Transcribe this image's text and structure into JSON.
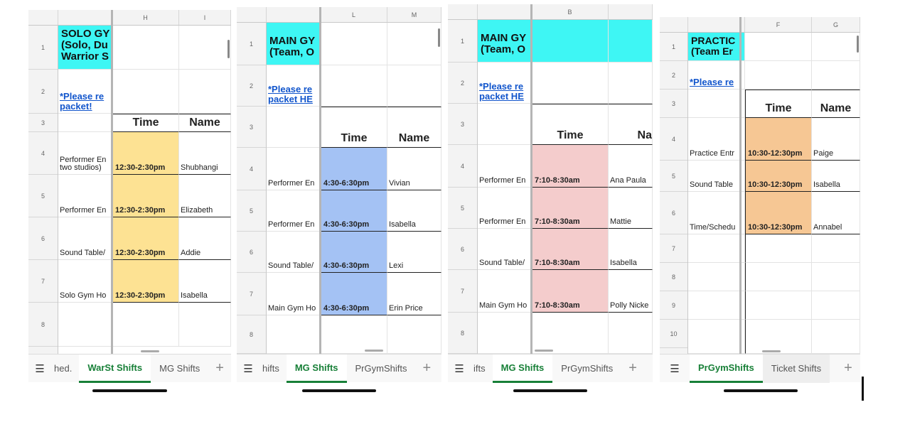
{
  "colors": {
    "title_fill": "#3ef6f4",
    "link": "#1155cc",
    "active_tab": "#188038",
    "warst_fill": "#fde293",
    "mg_pm_fill": "#a4c2f4",
    "mg_am_fill": "#f4cccc",
    "pr_fill": "#f6c794"
  },
  "panel1": {
    "col_h": "H",
    "col_i": "I",
    "rows": [
      "1",
      "2",
      "3",
      "4",
      "5",
      "6",
      "7",
      "8"
    ],
    "title": "SOLO GY\n(Solo, Du\nWarrior S",
    "link": "*Please re\npacket!",
    "hdr_time": "Time",
    "hdr_name": "Name",
    "entries": [
      {
        "role": "Performer En\ntwo studios)",
        "time": "12:30-2:30pm",
        "name": "Shubhangi"
      },
      {
        "role": "Performer En",
        "time": "12:30-2:30pm",
        "name": "Elizabeth"
      },
      {
        "role": "Sound Table/",
        "time": "12:30-2:30pm",
        "name": "Addie"
      },
      {
        "role": "Solo Gym Ho",
        "time": "12:30-2:30pm",
        "name": "Isabella"
      }
    ],
    "tabs": {
      "t1": "hed.",
      "t2": "WarSt Shifts",
      "t3": "MG Shifts",
      "plus": "+"
    }
  },
  "panel2": {
    "col_l": "L",
    "col_m": "M",
    "rows": [
      "1",
      "2",
      "3",
      "4",
      "5",
      "6",
      "7",
      "8"
    ],
    "title": "MAIN GY\n(Team, O",
    "link": "*Please re\npacket HE",
    "hdr_time": "Time",
    "hdr_name": "Name",
    "entries": [
      {
        "role": "Performer En",
        "time": "4:30-6:30pm",
        "name": "Vivian"
      },
      {
        "role": "Performer En",
        "time": "4:30-6:30pm",
        "name": "Isabella"
      },
      {
        "role": "Sound Table/",
        "time": "4:30-6:30pm",
        "name": "Lexi"
      },
      {
        "role": "Main Gym Ho",
        "time": "4:30-6:30pm",
        "name": "Erin Price"
      }
    ],
    "tabs": {
      "t1": "hifts",
      "t2": "MG Shifts",
      "t3": "PrGymShifts",
      "plus": "+"
    }
  },
  "panel3": {
    "col_b": "B",
    "rows": [
      "1",
      "2",
      "3",
      "4",
      "5",
      "6",
      "7",
      "8"
    ],
    "title": "MAIN GY\n(Team, O",
    "link": "*Please re\npacket HE",
    "hdr_time": "Time",
    "hdr_name": "Na",
    "entries": [
      {
        "role": "Performer En",
        "time": "7:10-8:30am",
        "name": "Ana Paula"
      },
      {
        "role": "Performer En",
        "time": "7:10-8:30am",
        "name": "Mattie"
      },
      {
        "role": "Sound Table/",
        "time": "7:10-8:30am",
        "name": "Isabella"
      },
      {
        "role": "Main Gym Ho",
        "time": "7:10-8:30am",
        "name": "Polly Nicke"
      }
    ],
    "tabs": {
      "t1": "ifts",
      "t2": "MG Shifts",
      "t3": "PrGymShifts",
      "plus": "+"
    }
  },
  "panel4": {
    "col_f": "F",
    "col_g": "G",
    "rows": [
      "1",
      "2",
      "3",
      "4",
      "5",
      "6",
      "7",
      "8",
      "9",
      "10"
    ],
    "title": "PRACTIC\n(Team Er",
    "link": "*Please re",
    "hdr_time": "Time",
    "hdr_name": "Name",
    "entries": [
      {
        "role": "Practice Entr",
        "time": "10:30-12:30pm",
        "name": "Paige"
      },
      {
        "role": "Sound Table",
        "time": "10:30-12:30pm",
        "name": "Isabella"
      },
      {
        "role": "Time/Schedu",
        "time": "10:30-12:30pm",
        "name": "Annabel"
      }
    ],
    "tabs": {
      "t1": "PrGymShifts",
      "t2": "Ticket Shifts",
      "plus": "+"
    }
  }
}
